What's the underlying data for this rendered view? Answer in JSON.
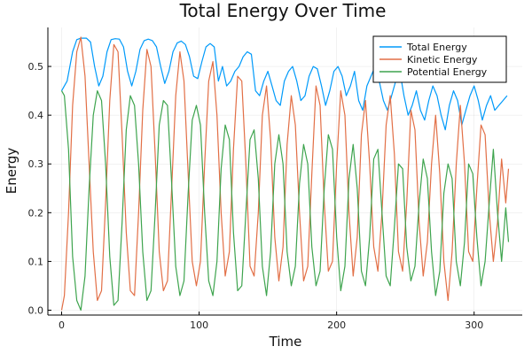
{
  "chart_data": {
    "type": "line",
    "title": "Total Energy Over Time",
    "xlabel": "Time",
    "ylabel": "Energy",
    "xlim": [
      -10,
      335
    ],
    "ylim": [
      -0.01,
      0.58
    ],
    "xticks": [
      0,
      100,
      200,
      300
    ],
    "xtick_labels": [
      "0",
      "100",
      "200",
      "300"
    ],
    "yticks": [
      0.0,
      0.1,
      0.2,
      0.3,
      0.4,
      0.5
    ],
    "ytick_labels": [
      "0.0",
      "0.1",
      "0.2",
      "0.3",
      "0.4",
      "0.5"
    ],
    "grid": true,
    "legend_position": "top-right",
    "series": [
      {
        "name": "Total Energy",
        "color": "#009AFA",
        "x": [
          0,
          4,
          8,
          11,
          14,
          18,
          21,
          24,
          27,
          30,
          33,
          36,
          39,
          42,
          45,
          48,
          51,
          54,
          57,
          60,
          63,
          66,
          69,
          72,
          75,
          78,
          81,
          84,
          87,
          90,
          93,
          96,
          99,
          102,
          105,
          108,
          111,
          114,
          117,
          120,
          123,
          126,
          129,
          132,
          135,
          138,
          141,
          144,
          147,
          150,
          153,
          156,
          159,
          162,
          165,
          168,
          171,
          174,
          177,
          180,
          183,
          186,
          189,
          192,
          195,
          198,
          201,
          204,
          207,
          210,
          213,
          216,
          219,
          222,
          225,
          228,
          231,
          234,
          237,
          240,
          243,
          246,
          249,
          252,
          255,
          258,
          261,
          264,
          267,
          270,
          273,
          276,
          279,
          282,
          285,
          288,
          291,
          294,
          297,
          300,
          303,
          306,
          309,
          312,
          315,
          318,
          321,
          324
        ],
        "values": [
          0.45,
          0.47,
          0.53,
          0.555,
          0.558,
          0.558,
          0.55,
          0.5,
          0.46,
          0.48,
          0.53,
          0.555,
          0.557,
          0.556,
          0.54,
          0.49,
          0.46,
          0.49,
          0.535,
          0.553,
          0.556,
          0.553,
          0.54,
          0.5,
          0.465,
          0.49,
          0.53,
          0.548,
          0.552,
          0.545,
          0.52,
          0.48,
          0.475,
          0.51,
          0.54,
          0.547,
          0.54,
          0.47,
          0.5,
          0.46,
          0.47,
          0.49,
          0.5,
          0.52,
          0.53,
          0.525,
          0.45,
          0.44,
          0.47,
          0.49,
          0.46,
          0.43,
          0.42,
          0.47,
          0.49,
          0.5,
          0.47,
          0.43,
          0.44,
          0.48,
          0.5,
          0.495,
          0.46,
          0.42,
          0.45,
          0.49,
          0.5,
          0.48,
          0.44,
          0.46,
          0.49,
          0.43,
          0.41,
          0.46,
          0.48,
          0.5,
          0.47,
          0.43,
          0.41,
          0.44,
          0.47,
          0.49,
          0.44,
          0.4,
          0.42,
          0.45,
          0.41,
          0.39,
          0.43,
          0.46,
          0.44,
          0.4,
          0.37,
          0.42,
          0.45,
          0.43,
          0.38,
          0.41,
          0.44,
          0.46,
          0.43,
          0.39,
          0.42,
          0.44,
          0.41,
          0.42,
          0.43,
          0.44
        ]
      },
      {
        "name": "Kinetic Energy",
        "color": "#E26F46",
        "x": [
          0,
          2,
          5,
          8,
          11,
          14,
          17,
          20,
          23,
          26,
          29,
          32,
          35,
          38,
          41,
          44,
          47,
          50,
          53,
          56,
          59,
          62,
          65,
          68,
          71,
          74,
          77,
          80,
          83,
          86,
          89,
          92,
          95,
          98,
          101,
          104,
          107,
          110,
          113,
          116,
          119,
          122,
          125,
          128,
          131,
          134,
          137,
          140,
          143,
          146,
          149,
          152,
          155,
          158,
          161,
          164,
          167,
          170,
          173,
          176,
          179,
          182,
          185,
          188,
          191,
          194,
          197,
          200,
          203,
          206,
          209,
          212,
          215,
          218,
          221,
          224,
          227,
          230,
          233,
          236,
          239,
          242,
          245,
          248,
          251,
          254,
          257,
          260,
          263,
          266,
          269,
          272,
          275,
          278,
          281,
          284,
          287,
          290,
          293,
          296,
          299,
          302,
          305,
          308,
          311,
          314,
          317,
          320,
          323,
          325
        ],
        "values": [
          0.0,
          0.03,
          0.2,
          0.42,
          0.53,
          0.56,
          0.48,
          0.3,
          0.12,
          0.02,
          0.04,
          0.22,
          0.43,
          0.545,
          0.53,
          0.36,
          0.16,
          0.04,
          0.03,
          0.2,
          0.41,
          0.535,
          0.5,
          0.32,
          0.12,
          0.04,
          0.06,
          0.25,
          0.44,
          0.53,
          0.47,
          0.28,
          0.1,
          0.05,
          0.1,
          0.3,
          0.47,
          0.51,
          0.4,
          0.2,
          0.07,
          0.12,
          0.33,
          0.48,
          0.47,
          0.3,
          0.09,
          0.07,
          0.2,
          0.4,
          0.46,
          0.35,
          0.15,
          0.06,
          0.13,
          0.34,
          0.44,
          0.38,
          0.2,
          0.06,
          0.09,
          0.28,
          0.46,
          0.42,
          0.22,
          0.08,
          0.1,
          0.3,
          0.45,
          0.4,
          0.2,
          0.07,
          0.15,
          0.36,
          0.43,
          0.3,
          0.13,
          0.08,
          0.2,
          0.38,
          0.44,
          0.32,
          0.12,
          0.08,
          0.22,
          0.41,
          0.37,
          0.18,
          0.07,
          0.14,
          0.3,
          0.4,
          0.28,
          0.1,
          0.02,
          0.12,
          0.3,
          0.42,
          0.3,
          0.12,
          0.1,
          0.25,
          0.38,
          0.36,
          0.2,
          0.1,
          0.18,
          0.31,
          0.22,
          0.29
        ]
      },
      {
        "name": "Potential Energy",
        "color": "#3EA44E",
        "x": [
          0,
          2,
          5,
          8,
          11,
          14,
          17,
          20,
          23,
          26,
          29,
          32,
          35,
          38,
          41,
          44,
          47,
          50,
          53,
          56,
          59,
          62,
          65,
          68,
          71,
          74,
          77,
          80,
          83,
          86,
          89,
          92,
          95,
          98,
          101,
          104,
          107,
          110,
          113,
          116,
          119,
          122,
          125,
          128,
          131,
          134,
          137,
          140,
          143,
          146,
          149,
          152,
          155,
          158,
          161,
          164,
          167,
          170,
          173,
          176,
          179,
          182,
          185,
          188,
          191,
          194,
          197,
          200,
          203,
          206,
          209,
          212,
          215,
          218,
          221,
          224,
          227,
          230,
          233,
          236,
          239,
          242,
          245,
          248,
          251,
          254,
          257,
          260,
          263,
          266,
          269,
          272,
          275,
          278,
          281,
          284,
          287,
          290,
          293,
          296,
          299,
          302,
          305,
          308,
          311,
          314,
          317,
          320,
          323,
          325
        ],
        "values": [
          0.45,
          0.44,
          0.33,
          0.11,
          0.02,
          0.0,
          0.07,
          0.25,
          0.4,
          0.45,
          0.43,
          0.3,
          0.11,
          0.01,
          0.02,
          0.18,
          0.37,
          0.44,
          0.42,
          0.3,
          0.12,
          0.02,
          0.04,
          0.2,
          0.38,
          0.43,
          0.42,
          0.26,
          0.09,
          0.03,
          0.06,
          0.24,
          0.39,
          0.42,
          0.38,
          0.2,
          0.06,
          0.03,
          0.1,
          0.29,
          0.38,
          0.35,
          0.16,
          0.04,
          0.05,
          0.2,
          0.35,
          0.37,
          0.27,
          0.09,
          0.03,
          0.12,
          0.3,
          0.36,
          0.3,
          0.12,
          0.05,
          0.09,
          0.26,
          0.34,
          0.3,
          0.13,
          0.05,
          0.08,
          0.25,
          0.36,
          0.33,
          0.15,
          0.04,
          0.09,
          0.27,
          0.34,
          0.25,
          0.08,
          0.05,
          0.15,
          0.31,
          0.33,
          0.2,
          0.07,
          0.05,
          0.17,
          0.3,
          0.29,
          0.13,
          0.06,
          0.09,
          0.22,
          0.31,
          0.27,
          0.12,
          0.03,
          0.08,
          0.24,
          0.3,
          0.27,
          0.1,
          0.05,
          0.14,
          0.3,
          0.28,
          0.15,
          0.05,
          0.1,
          0.22,
          0.33,
          0.2,
          0.1,
          0.21,
          0.14
        ]
      }
    ]
  }
}
